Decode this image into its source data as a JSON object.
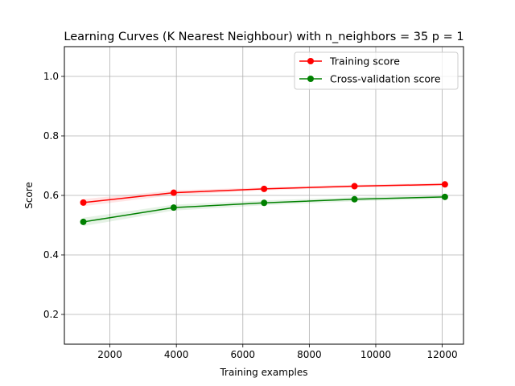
{
  "chart_data": {
    "type": "line",
    "title": "Learning Curves (K Nearest Neighbour) with n_neighbors = 35 p = 1",
    "xlabel": "Training examples",
    "ylabel": "Score",
    "xlim": [
      630,
      12640
    ],
    "ylim": [
      0.1,
      1.1
    ],
    "xticks": [
      2000,
      4000,
      6000,
      8000,
      10000,
      12000
    ],
    "xtick_labels": [
      "2000",
      "4000",
      "6000",
      "8000",
      "10000",
      "12000"
    ],
    "yticks": [
      0.2,
      0.4,
      0.6,
      0.8,
      1.0
    ],
    "ytick_labels": [
      "0.2",
      "0.4",
      "0.6",
      "0.8",
      "1.0"
    ],
    "grid": true,
    "legend_position": "top-right",
    "x": [
      1200,
      3920,
      6640,
      9360,
      12080
    ],
    "series": [
      {
        "name": "Training score",
        "color": "#ff0000",
        "values": [
          0.576,
          0.609,
          0.622,
          0.631,
          0.637
        ],
        "band": [
          0.012,
          0.008,
          0.005,
          0.005,
          0.005
        ]
      },
      {
        "name": "Cross-validation score",
        "color": "#008000",
        "values": [
          0.511,
          0.559,
          0.575,
          0.587,
          0.595
        ],
        "band": [
          0.014,
          0.01,
          0.008,
          0.007,
          0.006
        ]
      }
    ]
  }
}
